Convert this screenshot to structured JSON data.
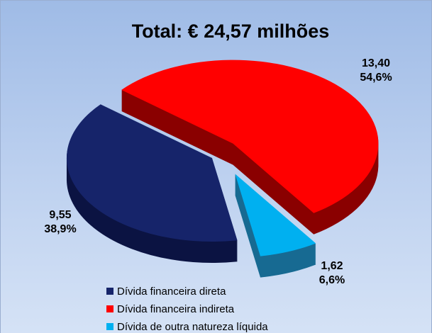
{
  "chart_data": {
    "type": "pie3d",
    "title": "Total: € 24,57 milhões",
    "categories": [
      "Dívida financeira direta",
      "Dívida financeira indireta",
      "Dívida de outra natureza líquida"
    ],
    "values": [
      9.55,
      13.4,
      1.62
    ],
    "value_labels": [
      "9,55",
      "13,40",
      "1,62"
    ],
    "percents": [
      38.9,
      54.6,
      6.6
    ],
    "percent_labels": [
      "38,9%",
      "54,6%",
      "6,6%"
    ],
    "colors": [
      "#16246a",
      "#ff0000",
      "#00b0f0"
    ],
    "legend": "bottom"
  }
}
